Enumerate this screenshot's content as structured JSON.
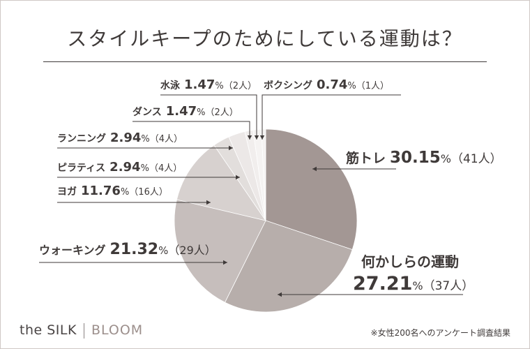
{
  "title": "スタイルキープのためにしている運動は？",
  "footnote": "※女性200名へのアンケート調査結果",
  "brand": {
    "left": "the SILK",
    "right": "BLOOM"
  },
  "colors": {
    "text": "#3f3a39",
    "slices": [
      "#a39794",
      "#b7aeab",
      "#c6bebc",
      "#d7d1cf",
      "#e2dedc",
      "#ece8e7",
      "#f1eeed",
      "#f5f3f2"
    ]
  },
  "chart_data": {
    "type": "pie",
    "title": "スタイルキープのためにしている運動は？",
    "start_angle_deg": 0,
    "direction": "clockwise",
    "slices": [
      {
        "label": "筋トレ",
        "percent": 30.15,
        "count": 41
      },
      {
        "label": "何かしらの運動",
        "percent": 27.21,
        "count": 37
      },
      {
        "label": "ウォーキング",
        "percent": 21.32,
        "count": 29
      },
      {
        "label": "ヨガ",
        "percent": 11.76,
        "count": 16
      },
      {
        "label": "ピラティス",
        "percent": 2.94,
        "count": 4
      },
      {
        "label": "ランニング",
        "percent": 2.94,
        "count": 4
      },
      {
        "label": "ダンス",
        "percent": 1.47,
        "count": 2
      },
      {
        "label": "水泳",
        "percent": 1.47,
        "count": 2
      },
      {
        "label": "ボクシング",
        "percent": 0.74,
        "count": 1
      }
    ],
    "value_suffix": "%",
    "count_format": "（{n}人）"
  }
}
